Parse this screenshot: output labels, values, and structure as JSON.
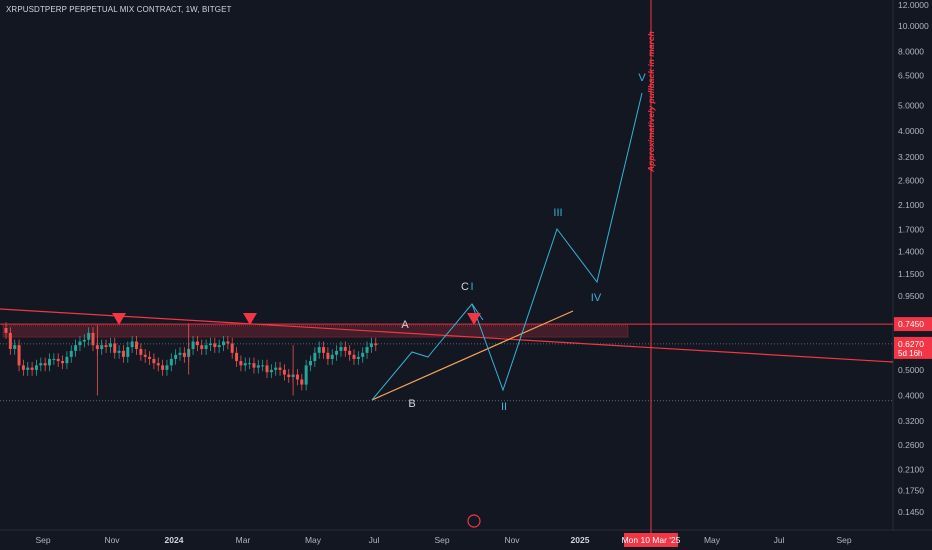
{
  "header": {
    "symbol_line": "XRPUSDTPERP PERPETUAL MIX CONTRACT, 1W, BITGET"
  },
  "chart_data": {
    "type": "candlestick",
    "y_scale": "log",
    "ylim": [
      0.13,
      12.2
    ],
    "y_ticks": [
      "12.0000",
      "10.0000",
      "8.0000",
      "6.5000",
      "5.0000",
      "4.0000",
      "3.2000",
      "2.6000",
      "2.1000",
      "1.7000",
      "1.4000",
      "1.1500",
      "0.9500",
      "0.7450",
      "0.6270",
      "0.5000",
      "0.4000",
      "0.3200",
      "0.2600",
      "0.2100",
      "0.1750",
      "0.1450"
    ],
    "x_ticks": [
      {
        "label": "Sep",
        "bold": false
      },
      {
        "label": "Nov",
        "bold": false
      },
      {
        "label": "2024",
        "bold": true
      },
      {
        "label": "Mar",
        "bold": false
      },
      {
        "label": "May",
        "bold": false
      },
      {
        "label": "Jul",
        "bold": false
      },
      {
        "label": "Sep",
        "bold": false
      },
      {
        "label": "Nov",
        "bold": false
      },
      {
        "label": "2025",
        "bold": true
      },
      {
        "label": "Mon 10 Mar '25",
        "bold": false,
        "highlight": true
      },
      {
        "label": "May",
        "bold": false
      },
      {
        "label": "Jul",
        "bold": false
      },
      {
        "label": "Sep",
        "bold": false
      }
    ],
    "price_labels": [
      {
        "text": "0.7450",
        "color": "#f23645"
      },
      {
        "text": "0.6270",
        "sub": "5d 16h",
        "color": "#f23645"
      }
    ],
    "wave_labels": [
      "I",
      "II",
      "III",
      "IV",
      "V"
    ],
    "abc_labels": [
      "A",
      "B",
      "C"
    ],
    "vertical_annotation": "Approximatively pullback in march",
    "colors": {
      "up": "#26a69a",
      "down": "#ef5350",
      "wave": "#38b2d8",
      "resistance": "#f23645",
      "support": "#f7a35c",
      "background": "#131722"
    }
  }
}
